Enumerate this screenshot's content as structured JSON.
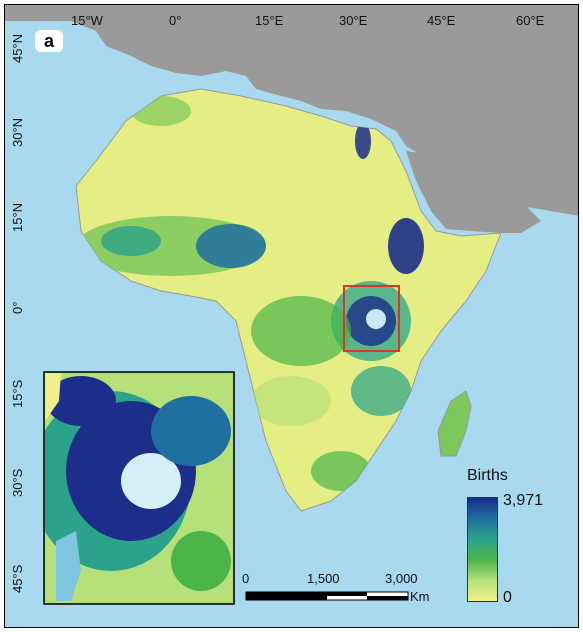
{
  "panel_label": "a",
  "lon_ticks": [
    "15°W",
    "0°",
    "15°E",
    "30°E",
    "45°E",
    "60°E"
  ],
  "lat_ticks": [
    "45°N",
    "30°N",
    "15°N",
    "0°",
    "15°S",
    "30°S",
    "45°S"
  ],
  "legend": {
    "title": "Births",
    "max_label": "3,971",
    "min_label": "0",
    "max_value": 3971,
    "min_value": 0,
    "colors": [
      "#eef08a",
      "#b6e07a",
      "#4cb54a",
      "#2aa38a",
      "#1f6fa0",
      "#1c2d8a"
    ]
  },
  "scale_bar": {
    "labels": [
      "0",
      "1,500",
      "3,000"
    ],
    "unit": "Km"
  },
  "colors": {
    "ocean": "#a9d9ee",
    "other_land": "#9a9a9a",
    "africa_low": "#e4ee84",
    "highlight_box": "#e0322a"
  }
}
